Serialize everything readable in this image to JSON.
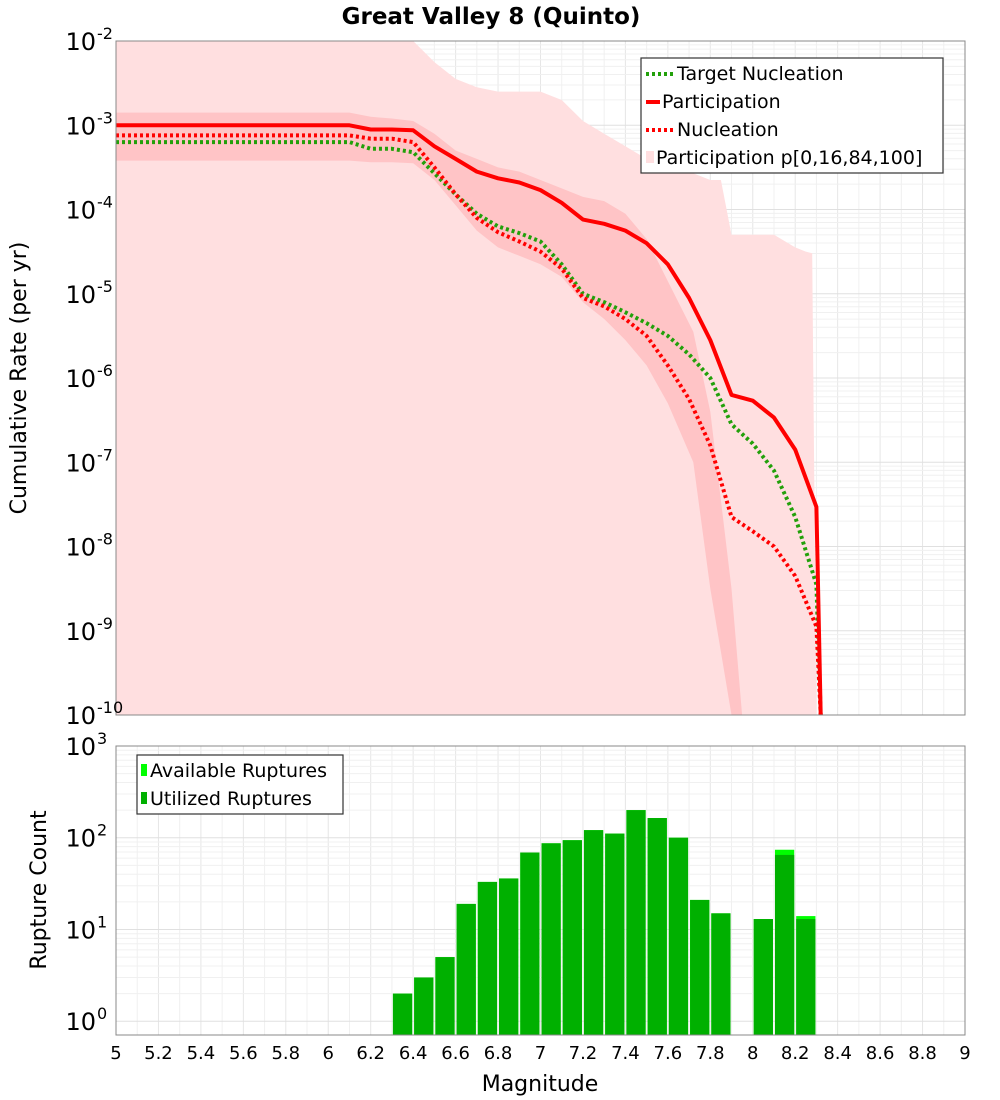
{
  "chart_data": [
    {
      "type": "line",
      "title": "Great Valley 8 (Quinto)",
      "xlabel": "",
      "ylabel": "Cumulative Rate (per yr)",
      "xlim": [
        5,
        9
      ],
      "ylim_log10": [
        -10,
        -2
      ],
      "yscale": "log",
      "y_tick_labels": [
        {
          "base": "10",
          "exp": "-2"
        },
        {
          "base": "10",
          "exp": "-3"
        },
        {
          "base": "10",
          "exp": "-4"
        },
        {
          "base": "10",
          "exp": "-5"
        },
        {
          "base": "10",
          "exp": "-6"
        },
        {
          "base": "10",
          "exp": "-7"
        },
        {
          "base": "10",
          "exp": "-8"
        },
        {
          "base": "10",
          "exp": "-9"
        },
        {
          "base": "10",
          "exp": "-10"
        }
      ],
      "legend_position": "top-right",
      "legend": [
        {
          "label": "Target Nucleation",
          "style": "dotted",
          "color": "#22a00a"
        },
        {
          "label": "Participation",
          "style": "solid",
          "color": "#ff0000"
        },
        {
          "label": "Nucleation",
          "style": "dotted",
          "color": "#ff0000"
        },
        {
          "label": "Participation p[0,16,84,100]",
          "style": "box",
          "color": "#ffdfe0"
        }
      ],
      "series": [
        {
          "name": "Target Nucleation",
          "color": "#22a00a",
          "x": [
            5.0,
            6.1,
            6.2,
            6.3,
            6.4,
            6.5,
            6.6,
            6.7,
            6.8,
            6.9,
            7.0,
            7.1,
            7.2,
            7.3,
            7.4,
            7.5,
            7.6,
            7.7,
            7.8,
            7.9,
            8.0,
            8.1,
            8.2,
            8.3,
            8.32
          ],
          "log10_y": [
            -3.2,
            -3.2,
            -3.28,
            -3.28,
            -3.32,
            -3.57,
            -3.82,
            -4.05,
            -4.2,
            -4.28,
            -4.38,
            -4.65,
            -5.0,
            -5.1,
            -5.22,
            -5.35,
            -5.5,
            -5.72,
            -6.0,
            -6.55,
            -6.78,
            -7.1,
            -7.65,
            -8.45,
            -10.0
          ]
        },
        {
          "name": "Participation",
          "color": "#ff0000",
          "x": [
            5.0,
            6.1,
            6.2,
            6.3,
            6.4,
            6.5,
            6.6,
            6.7,
            6.8,
            6.9,
            7.0,
            7.1,
            7.2,
            7.3,
            7.4,
            7.5,
            7.6,
            7.7,
            7.8,
            7.9,
            8.0,
            8.1,
            8.2,
            8.3,
            8.32
          ],
          "log10_y": [
            -3.0,
            -3.0,
            -3.05,
            -3.05,
            -3.06,
            -3.25,
            -3.4,
            -3.55,
            -3.63,
            -3.68,
            -3.77,
            -3.92,
            -4.12,
            -4.17,
            -4.25,
            -4.4,
            -4.65,
            -5.05,
            -5.55,
            -6.2,
            -6.27,
            -6.47,
            -6.85,
            -7.53,
            -10.0
          ]
        },
        {
          "name": "Nucleation",
          "color": "#ff0000",
          "x": [
            5.0,
            6.1,
            6.2,
            6.3,
            6.4,
            6.5,
            6.6,
            6.7,
            6.8,
            6.9,
            7.0,
            7.1,
            7.2,
            7.3,
            7.4,
            7.5,
            7.6,
            7.7,
            7.8,
            7.9,
            8.0,
            8.1,
            8.2,
            8.3,
            8.32
          ],
          "log10_y": [
            -3.12,
            -3.12,
            -3.16,
            -3.16,
            -3.2,
            -3.5,
            -3.82,
            -4.1,
            -4.27,
            -4.38,
            -4.5,
            -4.7,
            -5.05,
            -5.15,
            -5.3,
            -5.5,
            -5.85,
            -6.25,
            -6.8,
            -7.65,
            -7.82,
            -8.0,
            -8.35,
            -8.95,
            -10.0
          ]
        }
      ],
      "bands": [
        {
          "name": "Participation p0-p100",
          "color": "#ffdfe0",
          "x": [
            5.0,
            6.2,
            6.3,
            6.4,
            6.5,
            6.6,
            6.7,
            6.8,
            6.9,
            7.0,
            7.1,
            7.2,
            7.3,
            7.4,
            7.5,
            7.6,
            7.7,
            7.8,
            7.85,
            7.9,
            8.0,
            8.1,
            8.2,
            8.25,
            8.28,
            8.3,
            8.31
          ],
          "log10_hi": [
            -2.0,
            -2.0,
            -2.0,
            -2.0,
            -2.25,
            -2.45,
            -2.55,
            -2.6,
            -2.6,
            -2.6,
            -2.7,
            -2.95,
            -3.1,
            -3.25,
            -3.4,
            -3.45,
            -3.55,
            -3.65,
            -3.65,
            -4.3,
            -4.3,
            -4.3,
            -4.45,
            -4.5,
            -4.52,
            -10.0,
            -10.0
          ],
          "log10_lo": [
            -10.0,
            -10.0,
            -10.0,
            -10.0,
            -10.0,
            -10.0,
            -10.0,
            -10.0,
            -10.0,
            -10.0,
            -10.0,
            -10.0,
            -10.0,
            -10.0,
            -10.0,
            -10.0,
            -10.0,
            -10.0,
            -10.0,
            -10.0,
            -10.0,
            -10.0,
            -10.0,
            -10.0,
            -10.0,
            -10.0,
            -10.0
          ]
        },
        {
          "name": "Participation p16-p84",
          "color": "#ffc4c6",
          "x": [
            5.0,
            6.1,
            6.2,
            6.3,
            6.4,
            6.5,
            6.6,
            6.7,
            6.8,
            6.9,
            7.0,
            7.1,
            7.2,
            7.3,
            7.4,
            7.5,
            7.6,
            7.72,
            7.8,
            7.9,
            7.95
          ],
          "log10_hi": [
            -2.85,
            -2.85,
            -2.9,
            -2.92,
            -2.95,
            -3.1,
            -3.3,
            -3.4,
            -3.5,
            -3.55,
            -3.65,
            -3.75,
            -3.85,
            -3.9,
            -4.05,
            -4.35,
            -4.85,
            -5.45,
            -6.4,
            -8.5,
            -10.0
          ],
          "log10_lo": [
            -3.42,
            -3.42,
            -3.44,
            -3.44,
            -3.45,
            -3.65,
            -3.95,
            -4.25,
            -4.45,
            -4.55,
            -4.65,
            -4.8,
            -5.1,
            -5.3,
            -5.55,
            -5.85,
            -6.3,
            -7.0,
            -8.5,
            -10.0,
            -10.0
          ]
        }
      ]
    },
    {
      "type": "bar",
      "title": "",
      "xlabel": "Magnitude",
      "ylabel": "Rupture Count",
      "xlim": [
        5,
        9
      ],
      "ylim_log10": [
        -0.15,
        3
      ],
      "yscale": "log",
      "x_tick_labels": [
        "5",
        "5.2",
        "5.4",
        "5.6",
        "5.8",
        "6",
        "6.2",
        "6.4",
        "6.6",
        "6.8",
        "7",
        "7.2",
        "7.4",
        "7.6",
        "7.8",
        "8",
        "8.2",
        "8.4",
        "8.6",
        "8.8",
        "9"
      ],
      "y_tick_labels": [
        {
          "base": "10",
          "exp": "0"
        },
        {
          "base": "10",
          "exp": "1"
        },
        {
          "base": "10",
          "exp": "2"
        },
        {
          "base": "10",
          "exp": "3"
        }
      ],
      "legend_position": "top-left",
      "legend": [
        {
          "label": "Available Ruptures",
          "color": "#00ff00"
        },
        {
          "label": "Utilized Ruptures",
          "color": "#00b000"
        }
      ],
      "bin_width": 0.1,
      "bins": [
        6.35,
        6.45,
        6.55,
        6.65,
        6.75,
        6.85,
        6.95,
        7.05,
        7.15,
        7.25,
        7.35,
        7.45,
        7.55,
        7.65,
        7.75,
        7.85,
        8.05,
        8.15,
        8.25
      ],
      "series": [
        {
          "name": "Available Ruptures",
          "color": "#00ff00",
          "values": [
            2,
            3,
            5,
            19,
            33,
            36,
            69,
            87,
            94,
            121,
            111,
            200,
            164,
            100,
            21,
            15,
            13,
            74,
            14
          ]
        },
        {
          "name": "Utilized Ruptures",
          "color": "#00b000",
          "values": [
            2,
            3,
            5,
            19,
            33,
            36,
            69,
            87,
            94,
            121,
            111,
            200,
            164,
            100,
            21,
            15,
            13,
            65,
            13
          ]
        }
      ]
    }
  ]
}
